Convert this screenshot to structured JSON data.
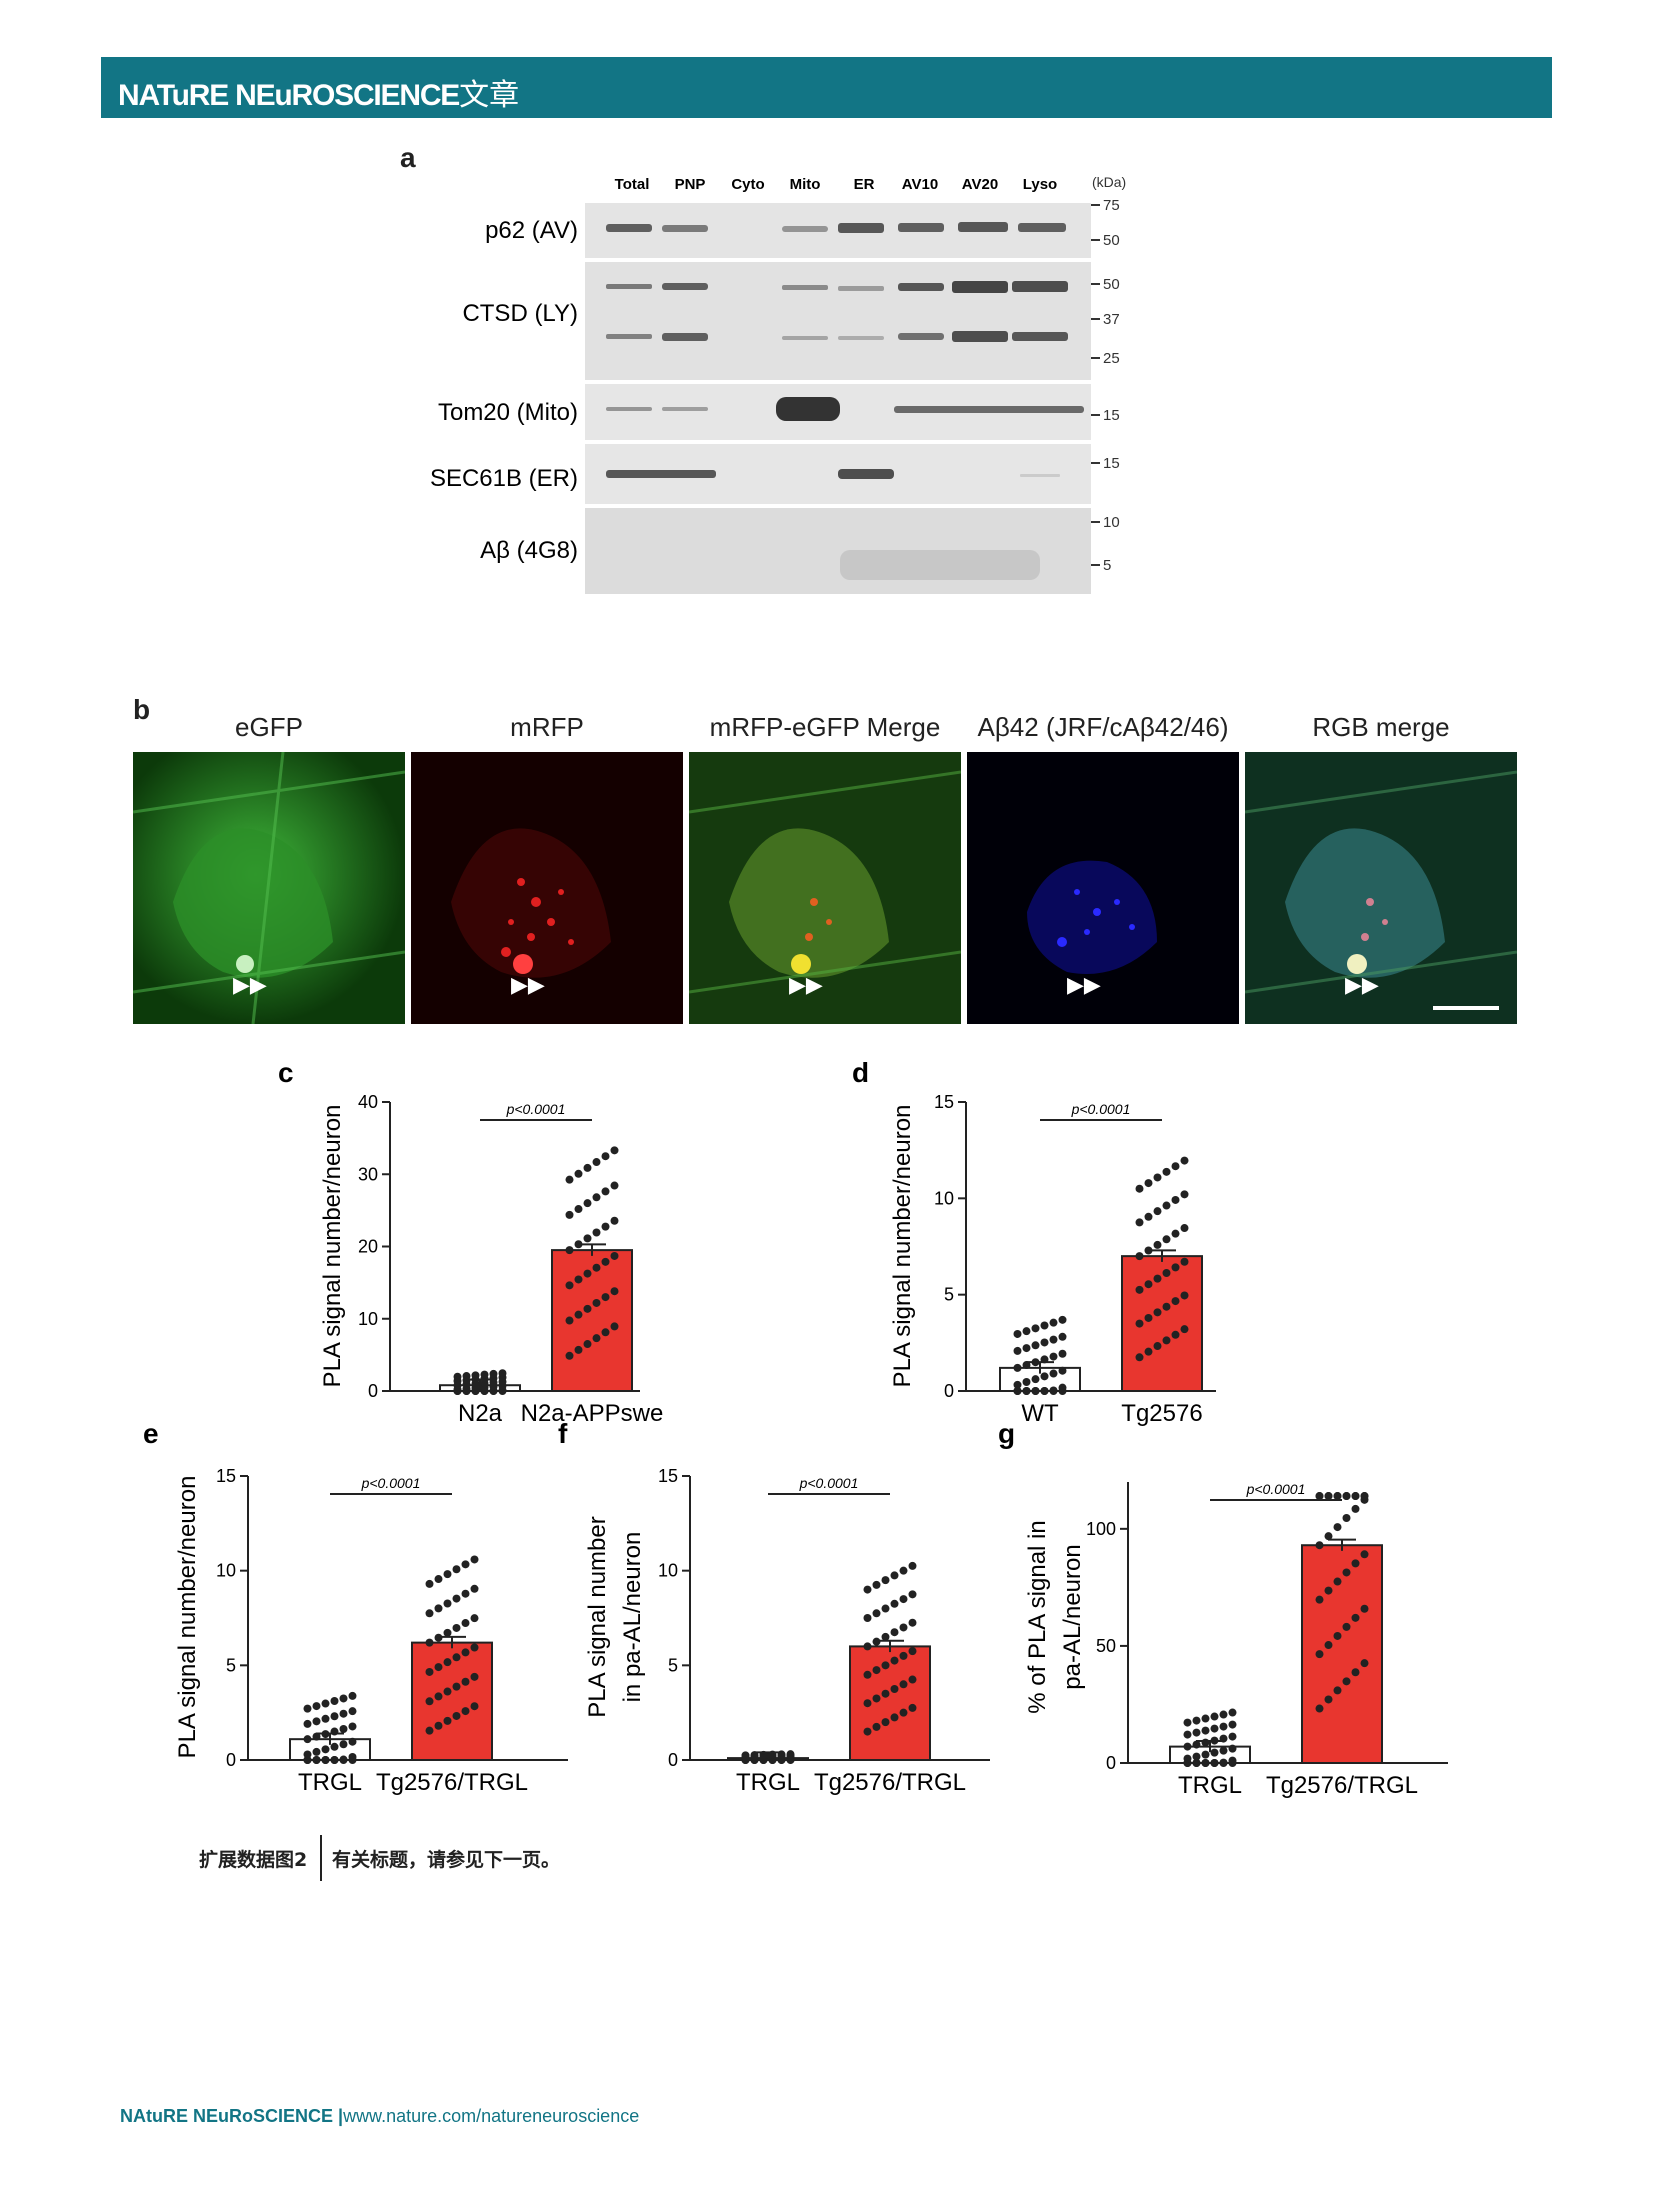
{
  "header": {
    "journal": "NATuRE NEuROSCIENCE",
    "article_type": "文章"
  },
  "panel_a": {
    "label": "a",
    "lanes": [
      "Total",
      "PNP",
      "Cyto",
      "Mito",
      "ER",
      "AV10",
      "AV20",
      "Lyso"
    ],
    "kda_label": "(kDa)",
    "blots": [
      {
        "name": "p62 (AV)",
        "markers": [
          "75",
          "50"
        ]
      },
      {
        "name": "CTSD (LY)",
        "markers": [
          "50",
          "37",
          "25"
        ]
      },
      {
        "name": "Tom20 (Mito)",
        "markers": [
          "15"
        ]
      },
      {
        "name": "SEC61B (ER)",
        "markers": [
          "15"
        ]
      },
      {
        "name": "Aβ (4G8)",
        "markers": [
          "10",
          "5"
        ]
      }
    ]
  },
  "panel_b": {
    "label": "b",
    "channels": [
      "eGFP",
      "mRFP",
      "mRFP-eGFP Merge",
      "Aβ42 (JRF/cAβ42/46)",
      "RGB merge"
    ],
    "channel_colors": [
      "#2fae2a",
      "#c01010",
      "#6a8a1a",
      "#1a1ad0",
      "#2a8a7a"
    ]
  },
  "chart_data": [
    {
      "label": "c",
      "type": "bar",
      "categories": [
        "N2a",
        "N2a-APPswe"
      ],
      "values": [
        0.8,
        19.5
      ],
      "ylabel": "PLA signal number/neuron",
      "ylim": [
        0,
        40
      ],
      "yticks": [
        "0",
        "10",
        "20",
        "30",
        "40"
      ],
      "pvalue": "p<0.0001"
    },
    {
      "label": "d",
      "type": "bar",
      "categories": [
        "WT",
        "Tg2576"
      ],
      "values": [
        1.2,
        7.0
      ],
      "ylabel": "PLA signal number/neuron",
      "ylim": [
        0,
        15
      ],
      "yticks": [
        "0",
        "5",
        "10",
        "15"
      ],
      "pvalue": "p<0.0001"
    },
    {
      "label": "e",
      "type": "bar",
      "categories": [
        "TRGL",
        "Tg2576/TRGL"
      ],
      "values": [
        1.1,
        6.2
      ],
      "ylabel": "PLA signal number/neuron",
      "ylim": [
        0,
        15
      ],
      "yticks": [
        "0",
        "5",
        "10",
        "15"
      ],
      "pvalue": "p<0.0001"
    },
    {
      "label": "f",
      "type": "bar",
      "categories": [
        "TRGL",
        "Tg2576/TRGL"
      ],
      "values": [
        0.1,
        6.0
      ],
      "ylabel": "PLA signal number",
      "ylabel2": "in pa-AL/neuron",
      "ylim": [
        0,
        15
      ],
      "yticks": [
        "0",
        "5",
        "10",
        "15"
      ],
      "pvalue": "p<0.0001"
    },
    {
      "label": "g",
      "type": "bar",
      "categories": [
        "TRGL",
        "Tg2576/TRGL"
      ],
      "values": [
        7,
        93
      ],
      "ylabel": "% of PLA signal in",
      "ylabel2": "pa-AL/neuron",
      "ylim": [
        0,
        120
      ],
      "yticks": [
        "0",
        "50",
        "100"
      ],
      "pvalue": "p<0.0001"
    }
  ],
  "caption": {
    "figure_label": "扩展数据图2",
    "text": "有关标题，请参见下一页。"
  },
  "footer": {
    "journal": "NAtuRE NEuRoSCIENCE",
    "url": "www.nature.com/natureneuroscience"
  }
}
